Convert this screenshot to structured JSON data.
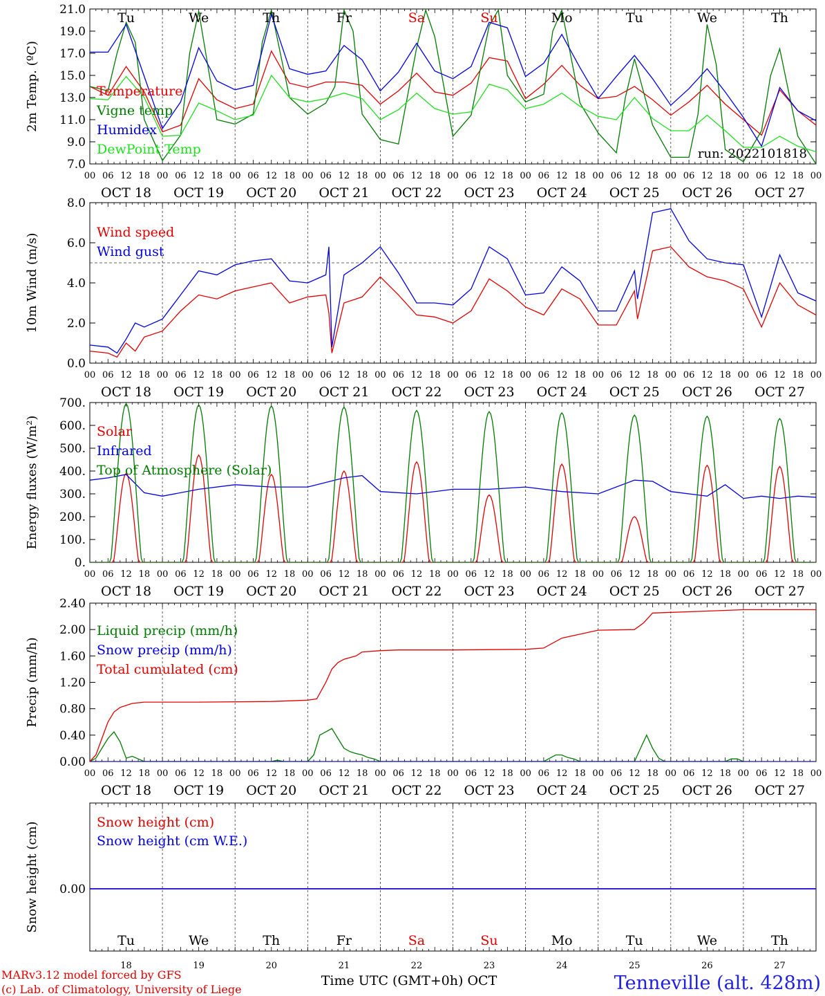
{
  "days": [
    "18",
    "19",
    "20",
    "21",
    "22",
    "23",
    "24",
    "25",
    "26",
    "27"
  ],
  "day_labels": [
    "OCT 18",
    "OCT 19",
    "OCT 20",
    "OCT 21",
    "OCT 22",
    "OCT 23",
    "OCT 24",
    "OCT 25",
    "OCT 26",
    "OCT 27"
  ],
  "weekdays": [
    "Tu",
    "We",
    "Th",
    "Fr",
    "Sa",
    "Su",
    "Mo",
    "Tu",
    "We",
    "Th"
  ],
  "weekend_days": [
    "Sa",
    "Su"
  ],
  "hour_ticks": [
    "00",
    "06",
    "12",
    "18"
  ],
  "colors": {
    "red": "#e00000",
    "green": "#007a00",
    "blue": "#0000e0",
    "lightgreen": "#20e020",
    "purple": "#8000a0"
  },
  "footer": {
    "model_line1": "MARv3.12 model forced by GFS",
    "model_line2": "(c) Lab. of Climatology, University of Liege",
    "axis_title": "Time UTC (GMT+0h) OCT",
    "station": "Tenneville (alt. 428m)"
  },
  "chart_data": [
    {
      "type": "line",
      "ylabel": "2m Temp. (ºC)",
      "ylim": [
        7,
        21
      ],
      "yticks": [
        "21.0",
        "19.0",
        "17.0",
        "15.0",
        "13.0",
        "11.0",
        "9.0",
        "7.0"
      ],
      "run_label": "run: 2022101818",
      "legend_placement": "left",
      "x_unit": "hours since Oct 18 00 UTC",
      "series": [
        {
          "name": "Temperature",
          "color": "#e00000",
          "x": [
            0,
            6,
            12,
            18,
            24,
            30,
            36,
            42,
            48,
            54,
            60,
            66,
            72,
            78,
            84,
            90,
            96,
            102,
            108,
            114,
            120,
            126,
            132,
            138,
            144,
            150,
            156,
            162,
            168,
            174,
            180,
            186,
            192,
            198,
            204,
            210,
            216,
            222,
            228,
            234,
            240
          ],
          "y": [
            14.0,
            13.2,
            15.8,
            13.5,
            9.9,
            10.5,
            14.7,
            12.8,
            12.0,
            12.4,
            17.2,
            14.3,
            13.9,
            14.4,
            14.4,
            14.1,
            12.4,
            13.6,
            15.2,
            13.5,
            13.2,
            14.3,
            16.6,
            16.3,
            12.9,
            14.2,
            15.9,
            14.1,
            12.9,
            13.1,
            14.0,
            12.8,
            11.4,
            12.6,
            14.1,
            12.4,
            11.0,
            9.6,
            13.7,
            11.8,
            10.5
          ]
        },
        {
          "name": "Vigne temp",
          "color": "#007a00",
          "x": [
            0,
            6,
            9,
            12,
            15,
            18,
            24,
            30,
            33,
            36,
            42,
            48,
            54,
            57,
            60,
            66,
            72,
            78,
            81,
            84,
            87,
            90,
            96,
            102,
            108,
            111,
            114,
            120,
            126,
            132,
            135,
            138,
            144,
            150,
            153,
            156,
            162,
            168,
            174,
            177,
            180,
            186,
            192,
            198,
            201,
            204,
            207,
            210,
            216,
            222,
            225,
            228,
            234,
            240
          ],
          "y": [
            14.0,
            13.6,
            17.0,
            19.8,
            18.0,
            11.0,
            7.3,
            9.6,
            17.0,
            20.8,
            11.0,
            10.6,
            11.5,
            18.0,
            20.9,
            13.0,
            11.5,
            12.5,
            14.0,
            20.9,
            19.0,
            11.5,
            9.2,
            8.8,
            17.5,
            20.9,
            18.5,
            9.5,
            11.4,
            19.5,
            20.9,
            15.0,
            12.6,
            13.3,
            19.0,
            20.9,
            12.5,
            9.8,
            8.0,
            13.0,
            16.5,
            10.5,
            7.6,
            7.6,
            11.5,
            19.6,
            16.0,
            8.3,
            7.2,
            10.0,
            15.0,
            17.4,
            9.5,
            7.0
          ]
        },
        {
          "name": "Humidex",
          "color": "#0000e0",
          "x": [
            0,
            6,
            12,
            18,
            24,
            30,
            36,
            42,
            48,
            54,
            60,
            66,
            72,
            78,
            84,
            90,
            96,
            102,
            108,
            114,
            120,
            126,
            132,
            138,
            144,
            150,
            156,
            162,
            168,
            174,
            180,
            186,
            192,
            198,
            204,
            210,
            216,
            222,
            228,
            234,
            240
          ],
          "y": [
            17.1,
            17.1,
            19.6,
            14.9,
            10.2,
            12.6,
            17.5,
            14.5,
            13.7,
            14.1,
            20.5,
            15.6,
            15.1,
            15.4,
            17.7,
            16.4,
            13.6,
            15.3,
            17.9,
            15.4,
            14.7,
            15.8,
            19.8,
            19.3,
            14.9,
            16.1,
            18.7,
            15.7,
            12.9,
            14.9,
            16.8,
            14.7,
            12.3,
            13.8,
            15.6,
            13.5,
            11.2,
            8.6,
            13.9,
            11.8,
            10.9
          ]
        },
        {
          "name": "DewPoint Temp",
          "color": "#20e020",
          "x": [
            0,
            6,
            12,
            18,
            24,
            30,
            36,
            42,
            48,
            54,
            60,
            66,
            72,
            78,
            84,
            90,
            96,
            102,
            108,
            114,
            120,
            126,
            132,
            138,
            144,
            150,
            156,
            162,
            168,
            174,
            180,
            186,
            192,
            198,
            204,
            210,
            216,
            222,
            228,
            234,
            240
          ],
          "y": [
            12.9,
            12.8,
            14.9,
            13.0,
            9.5,
            9.6,
            12.5,
            11.8,
            11.0,
            11.4,
            15.0,
            13.0,
            12.6,
            12.9,
            13.4,
            12.9,
            11.0,
            11.9,
            13.4,
            12.0,
            11.5,
            11.7,
            14.2,
            13.7,
            12.0,
            12.4,
            13.4,
            12.2,
            11.3,
            11.0,
            13.0,
            11.1,
            10.0,
            10.0,
            11.4,
            10.0,
            8.5,
            8.5,
            9.5,
            8.6,
            8.1
          ]
        }
      ]
    },
    {
      "type": "line",
      "ylabel": "10m Wind (m/s)",
      "ylim": [
        0,
        8
      ],
      "yticks": [
        "8.0",
        "6.0",
        "4.0",
        "2.0",
        "0.0"
      ],
      "reference_line": 5.0,
      "legend_placement": "left",
      "series": [
        {
          "name": "Wind speed",
          "color": "#e00000",
          "x": [
            0,
            6,
            9,
            12,
            15,
            18,
            24,
            30,
            36,
            42,
            48,
            54,
            60,
            66,
            72,
            78,
            79,
            80,
            84,
            90,
            96,
            102,
            108,
            114,
            120,
            126,
            132,
            138,
            144,
            150,
            156,
            162,
            168,
            174,
            180,
            181,
            186,
            192,
            198,
            204,
            210,
            216,
            222,
            228,
            234,
            240
          ],
          "y": [
            0.6,
            0.5,
            0.3,
            1.0,
            0.6,
            1.3,
            1.6,
            2.6,
            3.4,
            3.2,
            3.6,
            3.8,
            4.0,
            3.0,
            3.3,
            3.4,
            2.5,
            0.5,
            3.0,
            3.3,
            4.3,
            3.4,
            2.4,
            2.3,
            2.0,
            2.6,
            4.2,
            3.6,
            2.8,
            2.4,
            3.7,
            3.2,
            1.9,
            1.9,
            3.6,
            2.2,
            5.6,
            5.8,
            4.8,
            4.3,
            4.1,
            3.7,
            1.8,
            4.0,
            2.9,
            2.4
          ]
        },
        {
          "name": "Wind gust",
          "color": "#0000e0",
          "x": [
            0,
            6,
            9,
            12,
            15,
            18,
            24,
            30,
            36,
            42,
            48,
            54,
            60,
            66,
            72,
            78,
            79,
            80,
            84,
            90,
            96,
            102,
            108,
            114,
            120,
            126,
            132,
            138,
            144,
            150,
            156,
            162,
            168,
            174,
            180,
            181,
            186,
            192,
            198,
            204,
            210,
            216,
            222,
            228,
            234,
            240
          ],
          "y": [
            0.9,
            0.8,
            0.5,
            1.2,
            2.0,
            1.8,
            2.2,
            3.4,
            4.6,
            4.4,
            4.9,
            5.1,
            5.2,
            4.1,
            4.0,
            4.4,
            5.8,
            0.8,
            4.4,
            5.0,
            5.8,
            4.5,
            3.0,
            3.0,
            2.9,
            3.7,
            5.8,
            5.2,
            3.4,
            3.5,
            4.8,
            4.1,
            2.6,
            2.6,
            4.6,
            3.2,
            7.5,
            7.7,
            6.1,
            5.2,
            5.0,
            4.9,
            2.3,
            5.4,
            3.5,
            3.1
          ]
        }
      ]
    },
    {
      "type": "line",
      "ylabel": "Energy fluxes (W/m²)",
      "ylim": [
        0,
        700
      ],
      "yticks": [
        "700.",
        "600.",
        "500.",
        "400.",
        "300.",
        "200.",
        "100.",
        "0."
      ],
      "legend_placement": "left",
      "series": [
        {
          "name": "Solar",
          "color": "#e00000",
          "daily_peaks": [
            390,
            470,
            385,
            400,
            440,
            295,
            430,
            200,
            425,
            420
          ]
        },
        {
          "name": "Infrared",
          "color": "#0000e0",
          "x": [
            0,
            6,
            12,
            18,
            24,
            36,
            48,
            60,
            72,
            84,
            90,
            96,
            108,
            120,
            132,
            144,
            156,
            168,
            180,
            186,
            192,
            204,
            210,
            216,
            222,
            228,
            234,
            240
          ],
          "y": [
            360,
            370,
            385,
            305,
            290,
            320,
            340,
            330,
            330,
            370,
            380,
            310,
            300,
            320,
            320,
            330,
            310,
            300,
            360,
            355,
            310,
            290,
            340,
            280,
            290,
            280,
            290,
            285
          ]
        },
        {
          "name": "Top of Atmosphere (Solar)",
          "color": "#007a00",
          "daily_peaks": [
            695,
            690,
            685,
            680,
            665,
            660,
            655,
            645,
            640,
            630
          ]
        }
      ]
    },
    {
      "type": "line",
      "ylabel": "Precip (mm/h)",
      "ylim": [
        0,
        2.4
      ],
      "yticks": [
        "2.40",
        "2.00",
        "1.60",
        "1.20",
        "0.80",
        "0.40",
        "0.00"
      ],
      "legend_placement": "left",
      "series": [
        {
          "name": "Liquid precip (mm/h)",
          "color": "#007a00",
          "x": [
            0,
            2,
            4,
            6,
            8,
            10,
            12,
            14,
            16,
            18,
            60,
            62,
            64,
            72,
            74,
            76,
            78,
            80,
            82,
            84,
            86,
            88,
            90,
            92,
            94,
            96,
            150,
            152,
            154,
            156,
            158,
            160,
            162,
            180,
            182,
            184,
            186,
            188,
            190,
            210,
            212,
            214,
            216
          ],
          "y": [
            0,
            0.05,
            0.2,
            0.35,
            0.45,
            0.3,
            0.05,
            0.08,
            0.04,
            0,
            0,
            0.02,
            0,
            0,
            0.1,
            0.4,
            0.45,
            0.5,
            0.35,
            0.2,
            0.15,
            0.12,
            0.1,
            0.06,
            0.04,
            0,
            0,
            0.05,
            0.1,
            0.1,
            0.06,
            0.04,
            0,
            0,
            0.2,
            0.4,
            0.2,
            0.05,
            0,
            0,
            0.04,
            0.04,
            0
          ]
        },
        {
          "name": "Snow precip (mm/h)",
          "color": "#0000e0",
          "x": [
            0,
            240
          ],
          "y": [
            0,
            0
          ]
        },
        {
          "name": "Total cumulated (cm)",
          "color": "#e00000",
          "x": [
            0,
            2,
            4,
            6,
            8,
            10,
            12,
            14,
            18,
            36,
            60,
            72,
            75,
            78,
            80,
            82,
            84,
            88,
            90,
            96,
            102,
            120,
            144,
            150,
            156,
            168,
            180,
            183,
            186,
            204,
            216,
            240
          ],
          "y": [
            0,
            0.1,
            0.35,
            0.6,
            0.75,
            0.82,
            0.85,
            0.88,
            0.9,
            0.9,
            0.91,
            0.93,
            0.95,
            1.2,
            1.4,
            1.5,
            1.55,
            1.6,
            1.66,
            1.68,
            1.69,
            1.69,
            1.7,
            1.72,
            1.87,
            1.99,
            2.0,
            2.1,
            2.25,
            2.28,
            2.3,
            2.3
          ]
        }
      ]
    },
    {
      "type": "line",
      "ylabel": "Snow height (cm)",
      "yticks": [
        "0.00"
      ],
      "legend_placement": "left",
      "series": [
        {
          "name": "Snow height (cm)",
          "color": "#e00000",
          "x": [
            0,
            240
          ],
          "y": [
            0,
            0
          ]
        },
        {
          "name": "Snow height (cm W.E.)",
          "color": "#0000e0",
          "x": [
            0,
            240
          ],
          "y": [
            0,
            0
          ]
        }
      ]
    }
  ]
}
